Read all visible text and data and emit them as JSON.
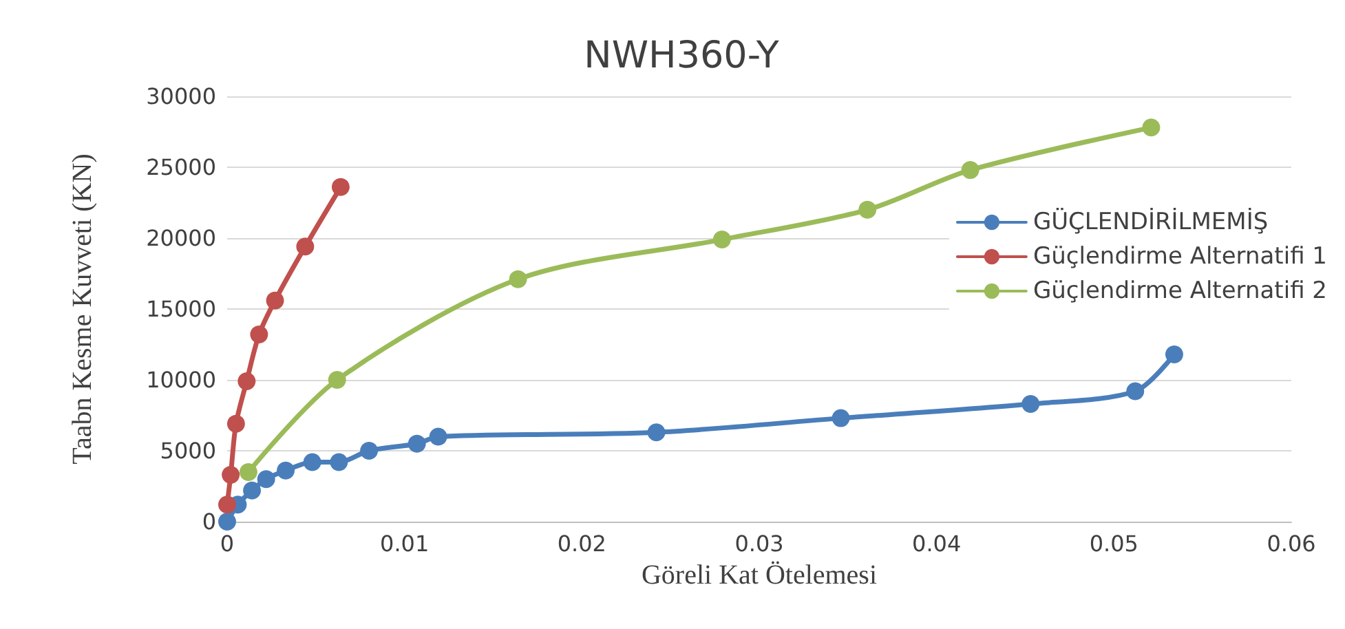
{
  "chart_data": {
    "type": "line",
    "title": "NWH360-Y",
    "xlabel": "Göreli Kat Ötelemesi",
    "ylabel": "Taabn Kesme Kuvveti (KN)",
    "xlim": [
      0,
      0.06
    ],
    "xticks": [
      0,
      0.01,
      0.02,
      0.03,
      0.04,
      0.05,
      0.06
    ],
    "ylim": [
      0,
      30000
    ],
    "yticks": [
      0,
      5000,
      10000,
      15000,
      20000,
      25000,
      30000
    ],
    "grid": "y",
    "legend": "right",
    "marker": "circle",
    "line_style": "solid",
    "series": [
      {
        "name": "GÜÇLENDİRİLMEMİŞ",
        "color": "#4a7ebb",
        "x": [
          0,
          0.0006,
          0.0014,
          0.0022,
          0.0033,
          0.0048,
          0.0063,
          0.008,
          0.0107,
          0.0119,
          0.0242,
          0.0346,
          0.0453,
          0.0512,
          0.0534
        ],
        "values": [
          0,
          1200,
          2200,
          3000,
          3600,
          4200,
          4200,
          5000,
          5500,
          6000,
          6300,
          7300,
          8300,
          9200,
          11800
        ]
      },
      {
        "name": "Güçlendirme Alternatifi 1",
        "color": "#c0504d",
        "x": [
          0,
          0.0002,
          0.0005,
          0.0011,
          0.0018,
          0.0027,
          0.0044,
          0.0064
        ],
        "values": [
          1200,
          3300,
          6900,
          9900,
          13200,
          15600,
          19400,
          23600
        ]
      },
      {
        "name": "Güçlendirme Alternatifi 2",
        "color": "#9bbb59",
        "x": [
          0.0012,
          0.0062,
          0.0164,
          0.0279,
          0.0361,
          0.0419,
          0.0521
        ],
        "values": [
          3500,
          10000,
          17100,
          19900,
          22000,
          24800,
          27800
        ]
      }
    ]
  }
}
